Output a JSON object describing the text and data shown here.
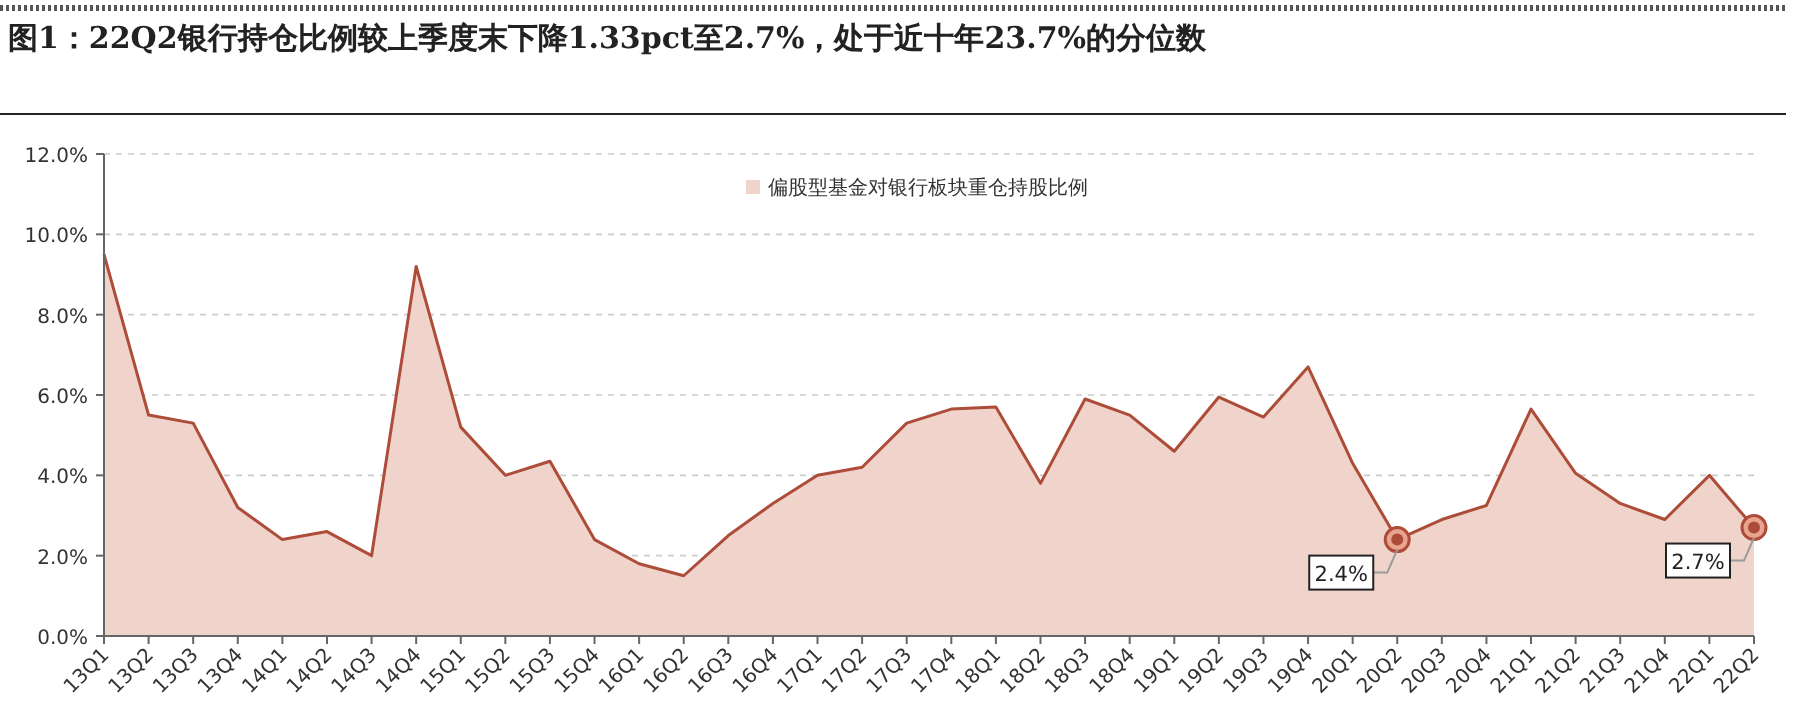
{
  "chart_data": {
    "type": "area",
    "title": "图1：22Q2银行持仓比例较上季度末下降1.33pct至2.7%，处于近十年23.7%的分位数",
    "categories": [
      "13Q1",
      "13Q2",
      "13Q3",
      "13Q4",
      "14Q1",
      "14Q2",
      "14Q3",
      "14Q4",
      "15Q1",
      "15Q2",
      "15Q3",
      "15Q4",
      "16Q1",
      "16Q2",
      "16Q3",
      "16Q4",
      "17Q1",
      "17Q2",
      "17Q3",
      "17Q4",
      "18Q1",
      "18Q2",
      "18Q3",
      "18Q4",
      "19Q1",
      "19Q2",
      "19Q3",
      "19Q4",
      "20Q1",
      "20Q2",
      "20Q3",
      "20Q4",
      "21Q1",
      "21Q2",
      "21Q3",
      "21Q4",
      "22Q1",
      "22Q2"
    ],
    "series": [
      {
        "name": "偏股型基金对银行板块重仓持股比例",
        "color": "#f0d4cb",
        "values": [
          9.5,
          5.5,
          5.3,
          3.2,
          2.4,
          2.6,
          2.0,
          9.2,
          5.2,
          4.0,
          4.35,
          2.4,
          1.8,
          1.5,
          2.5,
          3.3,
          4.0,
          4.2,
          5.3,
          5.65,
          5.7,
          3.8,
          5.9,
          5.5,
          4.6,
          5.95,
          5.45,
          6.7,
          4.3,
          2.4,
          2.9,
          3.25,
          5.65,
          4.05,
          3.3,
          2.9,
          4.0,
          2.7
        ]
      }
    ],
    "ylim": [
      0,
      12
    ],
    "yticks": [
      {
        "value": 0,
        "label": "0.0%"
      },
      {
        "value": 2,
        "label": "2.0%"
      },
      {
        "value": 4,
        "label": "4.0%"
      },
      {
        "value": 6,
        "label": "6.0%"
      },
      {
        "value": 8,
        "label": "8.0%"
      },
      {
        "value": 10,
        "label": "10.0%"
      },
      {
        "value": 12,
        "label": "12.0%"
      }
    ],
    "annotations": [
      {
        "text": "2.4%",
        "x": "20Q2",
        "y": 2.4
      },
      {
        "text": "2.7%",
        "x": "22Q2",
        "y": 2.7
      }
    ],
    "grid": "y",
    "legend": "top"
  }
}
